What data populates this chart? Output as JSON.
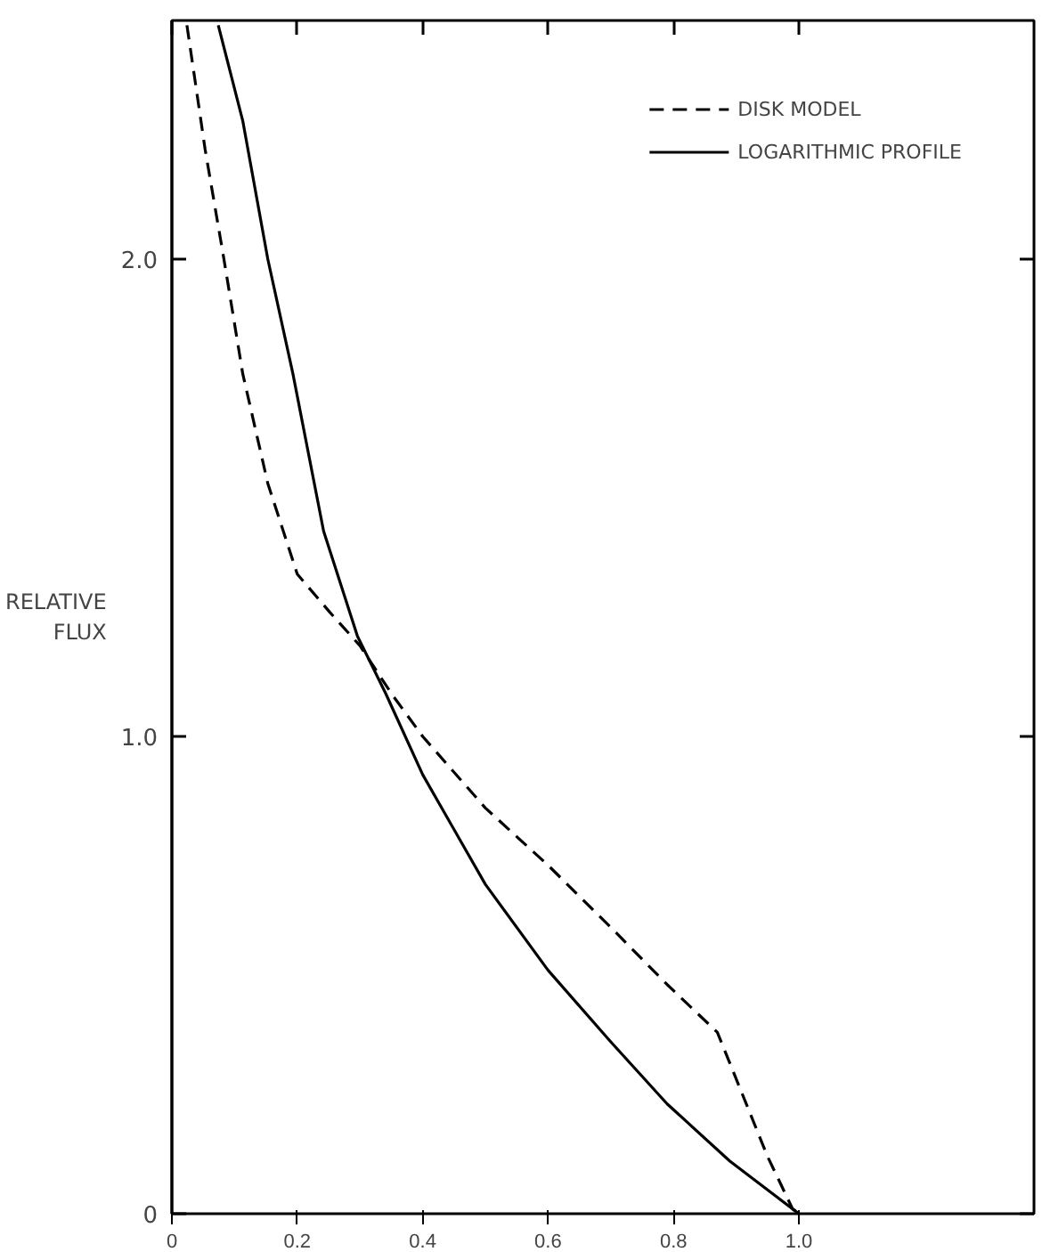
{
  "chart_data": {
    "type": "line",
    "ylabel": "RELATIVE FLUX",
    "xlim": [
      0,
      1.375
    ],
    "ylim": [
      0,
      2.5
    ],
    "xticks": [
      0,
      0.2,
      0.4,
      0.6,
      0.8,
      {
        "value": 1,
        "label": "1.0"
      }
    ],
    "yticks": [
      0,
      {
        "value": 1,
        "label": "1.0"
      },
      {
        "value": 2,
        "label": "2.0"
      }
    ],
    "grid": false,
    "legend": "top right",
    "marker": "none",
    "series": [
      {
        "name": "DISK MODEL",
        "color": "#000000",
        "line_style": "dashed",
        "x": [
          0.024,
          0.053,
          0.083,
          0.113,
          0.153,
          0.2,
          0.252,
          0.3,
          0.35,
          0.4,
          0.5,
          0.6,
          0.7,
          0.79,
          0.87,
          0.91,
          0.95,
          0.99,
          1.0
        ],
        "values": [
          2.49,
          2.23,
          2.0,
          1.76,
          1.53,
          1.34,
          1.26,
          1.19,
          1.09,
          1.0,
          0.85,
          0.73,
          0.6,
          0.48,
          0.38,
          0.25,
          0.12,
          0.01,
          0
        ]
      },
      {
        "name": "LOGARITHMIC PROFILE",
        "color": "#000000",
        "line_style": "solid",
        "x": [
          0.074,
          0.113,
          0.153,
          0.193,
          0.242,
          0.296,
          0.341,
          0.4,
          0.5,
          0.6,
          0.7,
          0.79,
          0.89,
          1.0
        ],
        "values": [
          2.49,
          2.29,
          2.0,
          1.76,
          1.43,
          1.21,
          1.09,
          0.92,
          0.69,
          0.51,
          0.36,
          0.23,
          0.11,
          0
        ]
      }
    ]
  }
}
